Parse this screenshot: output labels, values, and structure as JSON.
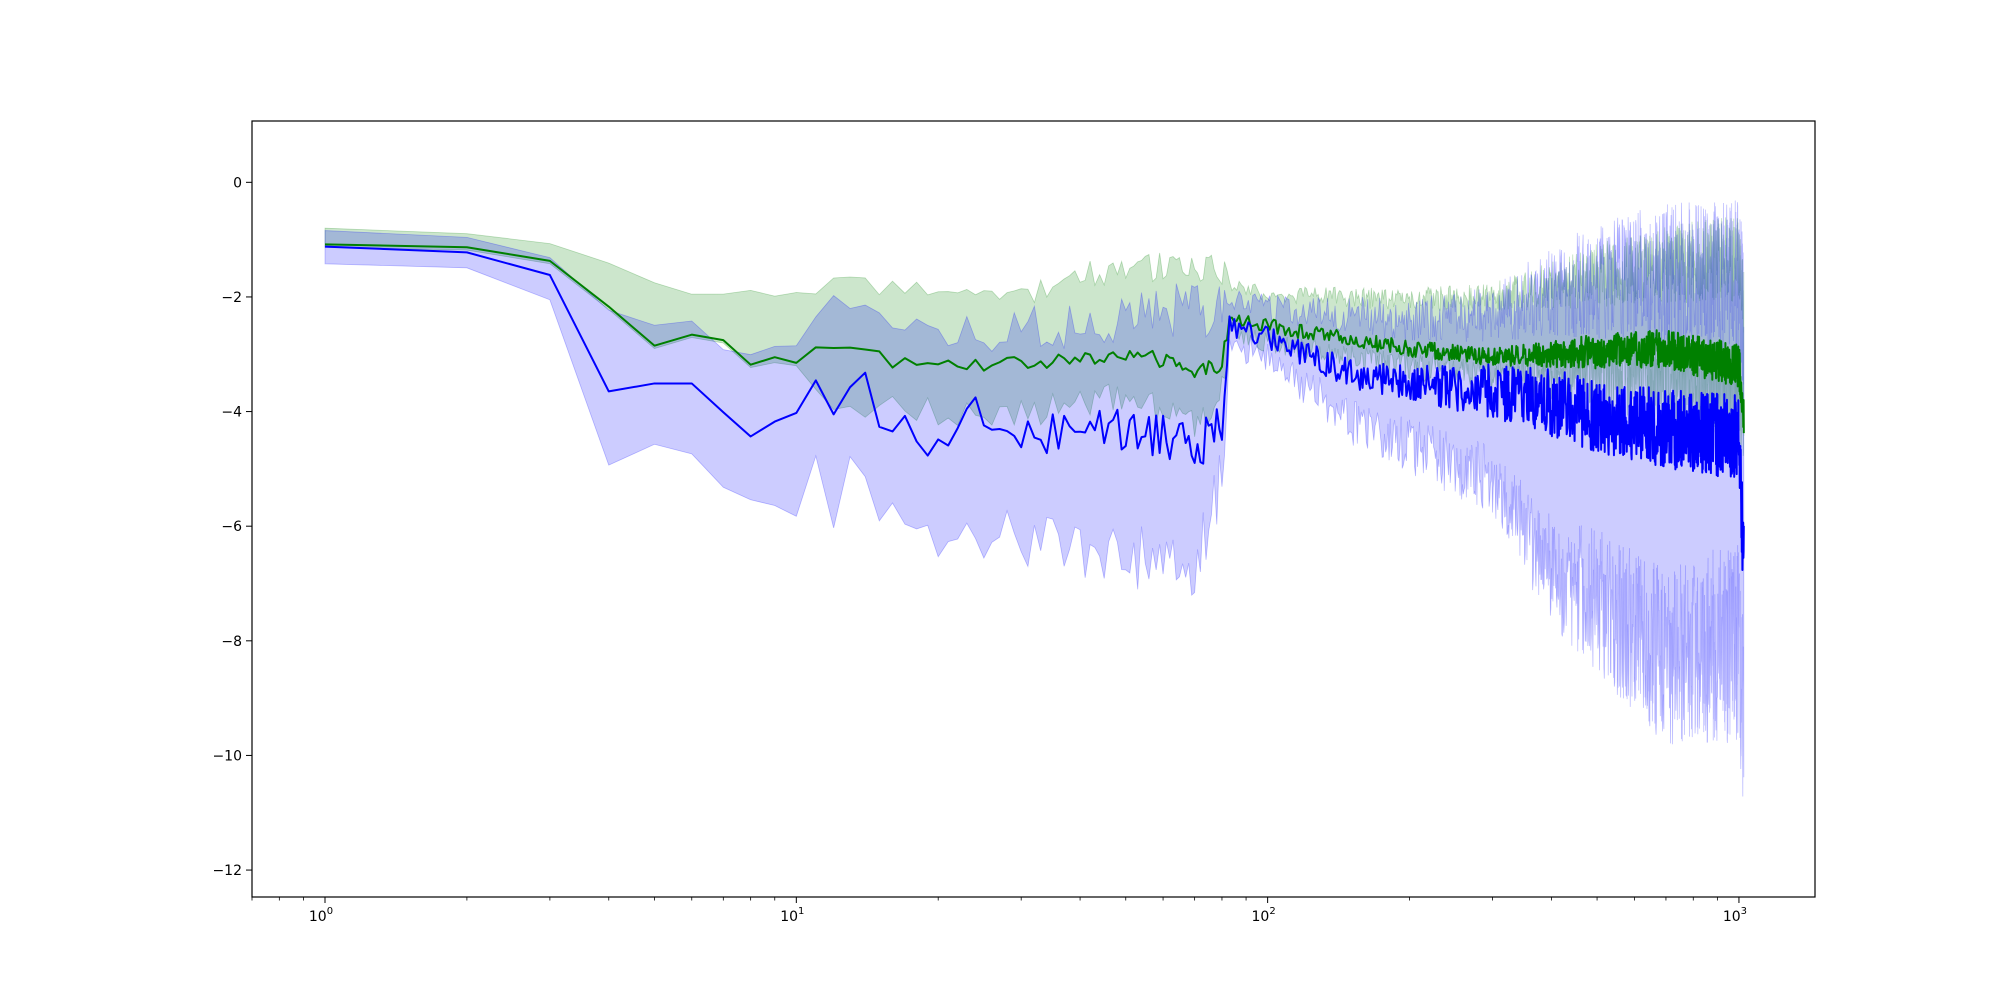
{
  "chart_data": {
    "type": "line",
    "title": "",
    "xlabel": "",
    "ylabel": "",
    "xscale": "log",
    "xlim": [
      0.7,
      1450
    ],
    "ylim": [
      -12.47,
      1.07
    ],
    "grid": false,
    "x_ticks": [
      {
        "base": "10",
        "exp": "0",
        "value": 1
      },
      {
        "base": "10",
        "exp": "1",
        "value": 10
      },
      {
        "base": "10",
        "exp": "2",
        "value": 100
      },
      {
        "base": "10",
        "exp": "3",
        "value": 1000
      }
    ],
    "y_ticks": [
      {
        "label": "0",
        "value": 0
      },
      {
        "label": "−2",
        "value": -2
      },
      {
        "label": "−4",
        "value": -4
      },
      {
        "label": "−6",
        "value": -6
      },
      {
        "label": "−8",
        "value": -8
      },
      {
        "label": "−10",
        "value": -10
      },
      {
        "label": "−12",
        "value": -12
      }
    ],
    "series": [
      {
        "color": "#008000",
        "band_color": "#008000",
        "band_opacity": 0.2,
        "anchors": [
          [
            1,
            -1.1
          ],
          [
            2,
            -1.12
          ],
          [
            3,
            -1.35
          ],
          [
            5,
            -2.8
          ],
          [
            6,
            -2.68
          ],
          [
            7,
            -2.8
          ],
          [
            8,
            -3.12
          ],
          [
            10,
            -3.1
          ],
          [
            11,
            -2.87
          ],
          [
            12,
            -2.92
          ],
          [
            15,
            -2.88
          ],
          [
            16,
            -3.15
          ],
          [
            20,
            -3.1
          ],
          [
            25,
            -3.2
          ],
          [
            30,
            -3.15
          ],
          [
            40,
            -3.1
          ],
          [
            50,
            -3.0
          ],
          [
            60,
            -3.1
          ],
          [
            70,
            -3.35
          ],
          [
            80,
            -3.15
          ],
          [
            83,
            -2.4
          ],
          [
            100,
            -2.5
          ],
          [
            150,
            -2.75
          ],
          [
            200,
            -2.9
          ],
          [
            300,
            -3.05
          ],
          [
            500,
            -2.95
          ],
          [
            700,
            -2.9
          ],
          [
            1000,
            -3.2
          ],
          [
            1024,
            -4.05
          ]
        ],
        "lower_anchors": [
          [
            1,
            -0.95
          ],
          [
            2,
            -0.97
          ],
          [
            3,
            -1.15
          ],
          [
            5,
            -2.25
          ],
          [
            6,
            -2.45
          ],
          [
            7,
            -2.65
          ],
          [
            8,
            -3.0
          ],
          [
            10,
            -3.25
          ],
          [
            12,
            -3.9
          ],
          [
            15,
            -3.95
          ],
          [
            20,
            -4.0
          ],
          [
            30,
            -4.0
          ],
          [
            50,
            -3.8
          ],
          [
            70,
            -4.2
          ],
          [
            80,
            -3.7
          ],
          [
            83,
            -2.6
          ],
          [
            100,
            -2.8
          ],
          [
            200,
            -3.2
          ],
          [
            300,
            -3.3
          ],
          [
            500,
            -3.3
          ],
          [
            1000,
            -3.6
          ],
          [
            1024,
            -4.2
          ]
        ],
        "upper_anchors": [
          [
            1,
            -0.82
          ],
          [
            2,
            -0.88
          ],
          [
            3,
            -1.05
          ],
          [
            4,
            -1.45
          ],
          [
            5,
            -1.8
          ],
          [
            8,
            -1.95
          ],
          [
            10,
            -2.05
          ],
          [
            12,
            -1.6
          ],
          [
            15,
            -1.9
          ],
          [
            20,
            -1.95
          ],
          [
            30,
            -1.95
          ],
          [
            40,
            -1.6
          ],
          [
            50,
            -1.55
          ],
          [
            60,
            -1.45
          ],
          [
            80,
            -1.5
          ],
          [
            83,
            -1.8
          ],
          [
            100,
            -1.95
          ],
          [
            200,
            -2.05
          ],
          [
            300,
            -2.0
          ],
          [
            400,
            -1.8
          ],
          [
            600,
            -1.5
          ],
          [
            1000,
            -1.3
          ],
          [
            1024,
            -2.2
          ]
        ],
        "noise": [
          [
            3,
            0.04
          ],
          [
            10,
            0.08
          ],
          [
            80,
            0.14
          ],
          [
            85,
            0.12
          ],
          [
            300,
            0.15
          ],
          [
            500,
            0.3
          ],
          [
            1024,
            0.38
          ]
        ],
        "band_noise": [
          [
            3,
            0.05
          ],
          [
            10,
            0.2
          ],
          [
            80,
            0.35
          ],
          [
            85,
            0.15
          ],
          [
            300,
            0.3
          ],
          [
            500,
            0.7
          ],
          [
            1024,
            1.0
          ]
        ]
      },
      {
        "color": "#0000ff",
        "band_color": "#0000ff",
        "band_opacity": 0.2,
        "anchors": [
          [
            1,
            -1.15
          ],
          [
            2,
            -1.22
          ],
          [
            3,
            -1.63
          ],
          [
            4,
            -3.63
          ],
          [
            6,
            -3.57
          ],
          [
            8,
            -4.27
          ],
          [
            9,
            -4.2
          ],
          [
            10,
            -4.1
          ],
          [
            11,
            -3.55
          ],
          [
            12,
            -4.15
          ],
          [
            14,
            -3.4
          ],
          [
            15,
            -4.25
          ],
          [
            16,
            -4.05
          ],
          [
            18,
            -4.3
          ],
          [
            20,
            -4.6
          ],
          [
            22,
            -4.15
          ],
          [
            25,
            -4.05
          ],
          [
            27,
            -4.3
          ],
          [
            30,
            -4.5
          ],
          [
            40,
            -4.2
          ],
          [
            50,
            -4.3
          ],
          [
            60,
            -4.5
          ],
          [
            70,
            -4.7
          ],
          [
            80,
            -4.2
          ],
          [
            83,
            -2.5
          ],
          [
            100,
            -2.7
          ],
          [
            150,
            -3.35
          ],
          [
            200,
            -3.5
          ],
          [
            300,
            -3.65
          ],
          [
            400,
            -3.85
          ],
          [
            500,
            -4.1
          ],
          [
            700,
            -4.3
          ],
          [
            1000,
            -4.45
          ],
          [
            1024,
            -6.7
          ]
        ],
        "lower_anchors": [
          [
            1,
            -1.42
          ],
          [
            2,
            -1.5
          ],
          [
            3,
            -2.0
          ],
          [
            4,
            -5.0
          ],
          [
            5,
            -4.7
          ],
          [
            6,
            -4.75
          ],
          [
            7,
            -5.25
          ],
          [
            8,
            -5.3
          ],
          [
            9,
            -5.45
          ],
          [
            10,
            -5.55
          ],
          [
            11,
            -5.0
          ],
          [
            12,
            -5.8
          ],
          [
            13,
            -5.1
          ],
          [
            15,
            -5.6
          ],
          [
            20,
            -6.4
          ],
          [
            25,
            -6.1
          ],
          [
            30,
            -6.2
          ],
          [
            40,
            -6.4
          ],
          [
            50,
            -6.5
          ],
          [
            60,
            -6.7
          ],
          [
            70,
            -6.9
          ],
          [
            80,
            -5.2
          ],
          [
            83,
            -2.85
          ],
          [
            100,
            -3.0
          ],
          [
            150,
            -4.2
          ],
          [
            200,
            -4.6
          ],
          [
            300,
            -5.2
          ],
          [
            400,
            -6.8
          ],
          [
            500,
            -7.3
          ],
          [
            700,
            -8.3
          ],
          [
            1000,
            -8.0
          ],
          [
            1024,
            -9.2
          ]
        ],
        "upper_anchors": [
          [
            1,
            -0.9
          ],
          [
            2,
            -0.95
          ],
          [
            3,
            -1.35
          ],
          [
            4,
            -2.3
          ],
          [
            5,
            -2.6
          ],
          [
            6,
            -2.4
          ],
          [
            8,
            -3.05
          ],
          [
            10,
            -2.8
          ],
          [
            12,
            -2.0
          ],
          [
            15,
            -2.5
          ],
          [
            20,
            -2.6
          ],
          [
            30,
            -2.6
          ],
          [
            50,
            -2.35
          ],
          [
            70,
            -2.2
          ],
          [
            80,
            -2.2
          ],
          [
            83,
            -2.0
          ],
          [
            100,
            -2.2
          ],
          [
            200,
            -2.4
          ],
          [
            300,
            -2.3
          ],
          [
            400,
            -1.9
          ],
          [
            500,
            -1.7
          ],
          [
            700,
            -1.6
          ],
          [
            1000,
            -1.7
          ],
          [
            1024,
            -2.5
          ]
        ],
        "noise": [
          [
            3,
            0.05
          ],
          [
            10,
            0.25
          ],
          [
            40,
            0.4
          ],
          [
            80,
            0.45
          ],
          [
            85,
            0.18
          ],
          [
            200,
            0.3
          ],
          [
            400,
            0.6
          ],
          [
            1024,
            0.75
          ]
        ],
        "band_noise": [
          [
            3,
            0.08
          ],
          [
            10,
            0.3
          ],
          [
            40,
            0.55
          ],
          [
            80,
            0.65
          ],
          [
            85,
            0.25
          ],
          [
            300,
            0.6
          ],
          [
            500,
            1.3
          ],
          [
            1024,
            1.8
          ]
        ]
      }
    ]
  }
}
